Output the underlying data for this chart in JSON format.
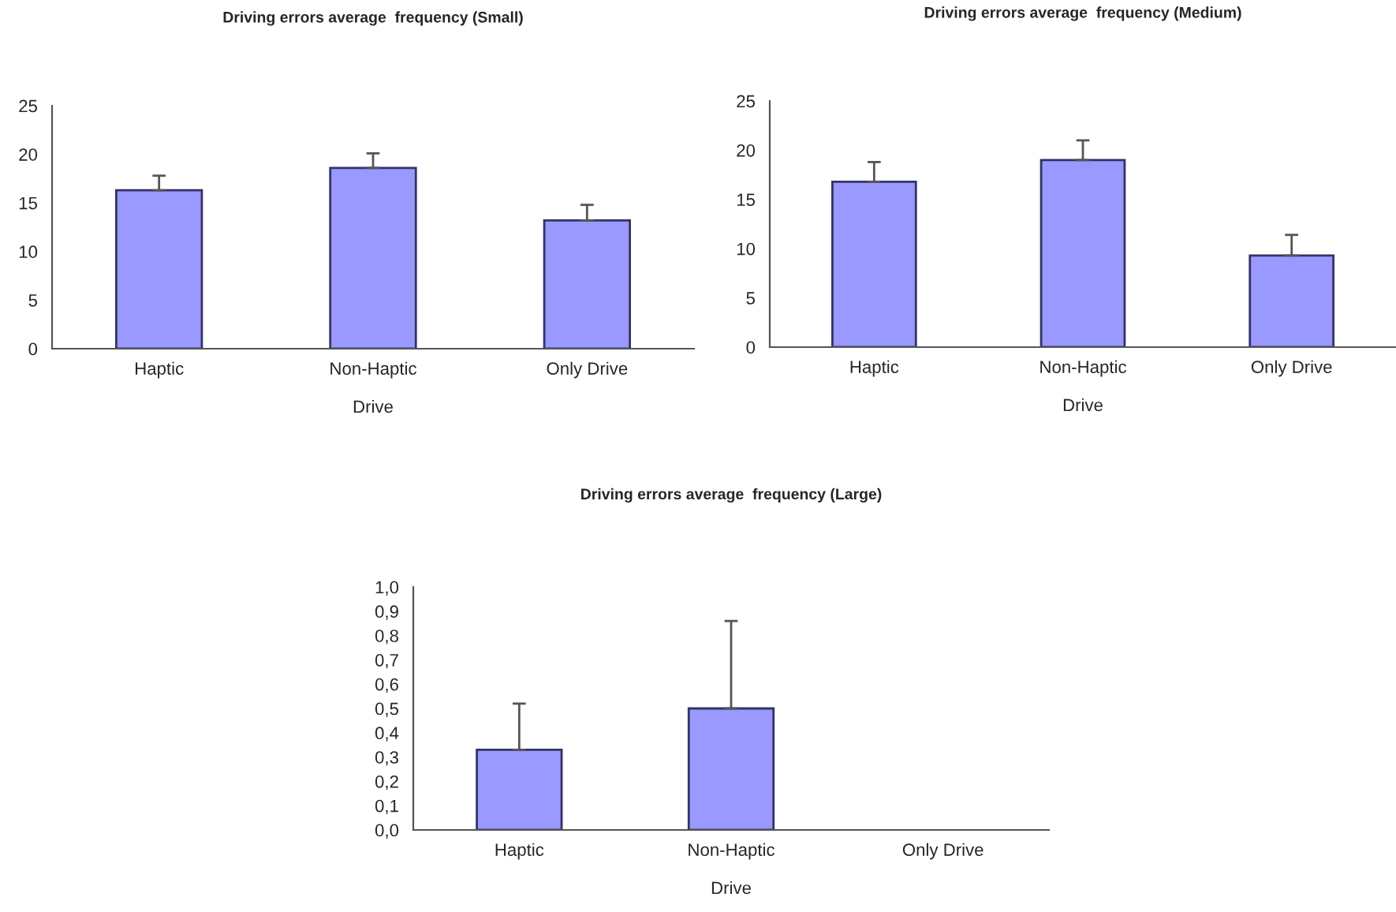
{
  "chart_data": [
    {
      "type": "bar",
      "title": "Driving errors average  frequency (Small)",
      "xlabel": "Drive",
      "categories": [
        "Haptic",
        "Non-Haptic",
        "Only Drive"
      ],
      "values": [
        16.3,
        18.6,
        13.2
      ],
      "errors": [
        [
          16.3,
          17.8
        ],
        [
          18.6,
          20.1
        ],
        [
          13.2,
          14.8
        ]
      ],
      "color": "#9999ff",
      "ylim": [
        0,
        25
      ],
      "yticks": [
        0,
        5,
        10,
        15,
        20,
        25
      ],
      "grid": false,
      "legend": false
    },
    {
      "type": "bar",
      "title": "Driving errors average  frequency (Medium)",
      "xlabel": "Drive",
      "categories": [
        "Haptic",
        "Non-Haptic",
        "Only Drive"
      ],
      "values": [
        16.8,
        19.0,
        9.3
      ],
      "errors": [
        [
          16.8,
          18.8
        ],
        [
          19.0,
          21.0
        ],
        [
          9.3,
          11.4
        ]
      ],
      "color": "#9999ff",
      "ylim": [
        0,
        25
      ],
      "yticks": [
        0,
        5,
        10,
        15,
        20,
        25
      ],
      "grid": false,
      "legend": false
    },
    {
      "type": "bar",
      "title": "Driving errors average  frequency (Large)",
      "xlabel": "Drive",
      "categories": [
        "Haptic",
        "Non-Haptic",
        "Only Drive"
      ],
      "values": [
        0.33,
        0.5,
        0
      ],
      "errors": [
        [
          0.33,
          0.52
        ],
        [
          0.5,
          0.86
        ],
        null
      ],
      "color": "#9999ff",
      "ylim": [
        0,
        1
      ],
      "yticks": [
        {
          "value": 0,
          "label": "0,0"
        },
        {
          "value": 0.1,
          "label": "0,1"
        },
        {
          "value": 0.2,
          "label": "0,2"
        },
        {
          "value": 0.3,
          "label": "0,3"
        },
        {
          "value": 0.4,
          "label": "0,4"
        },
        {
          "value": 0.5,
          "label": "0,5"
        },
        {
          "value": 0.6,
          "label": "0,6"
        },
        {
          "value": 0.7,
          "label": "0,7"
        },
        {
          "value": 0.8,
          "label": "0,8"
        },
        {
          "value": 0.9,
          "label": "0,9"
        },
        {
          "value": 1,
          "label": "1,0"
        }
      ],
      "grid": false,
      "legend": false
    }
  ]
}
